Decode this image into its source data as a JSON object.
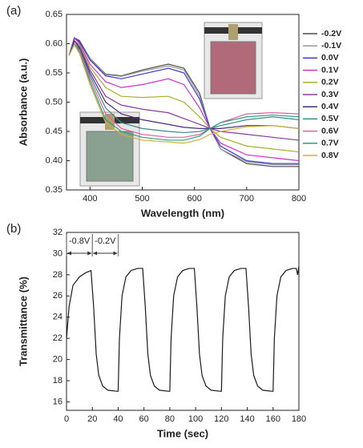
{
  "chart_data": [
    {
      "type": "line",
      "panel_label": "(a)",
      "x_label": "Wavelength (nm)",
      "y_label": "Absorbance (a.u.)",
      "x": [
        360,
        370,
        380,
        400,
        430,
        460,
        500,
        550,
        580,
        610,
        630,
        650,
        700,
        750,
        800
      ],
      "xlim": [
        355,
        800
      ],
      "xticks": [
        400,
        500,
        600,
        700,
        800
      ],
      "ylim": [
        0.35,
        0.65
      ],
      "yticks": [
        0.35,
        {
          "value": 0.4,
          "label": "0.40"
        },
        0.45,
        {
          "value": 0.5,
          "label": "0.50"
        },
        0.55,
        {
          "value": 0.6,
          "label": "0.60"
        },
        0.65
      ],
      "series": [
        {
          "name": "-0.2V",
          "color": "#4d4d4d",
          "values": [
            0.58,
            0.61,
            0.605,
            0.575,
            0.548,
            0.545,
            0.555,
            0.565,
            0.558,
            0.515,
            0.455,
            0.42,
            0.395,
            0.39,
            0.39
          ]
        },
        {
          "name": "-0.1V",
          "color": "#9a9a9a",
          "values": [
            0.58,
            0.608,
            0.603,
            0.574,
            0.547,
            0.544,
            0.553,
            0.562,
            0.555,
            0.51,
            0.455,
            0.42,
            0.398,
            0.393,
            0.393
          ]
        },
        {
          "name": "0.0V",
          "color": "#3a3ad0",
          "values": [
            0.58,
            0.61,
            0.603,
            0.572,
            0.545,
            0.54,
            0.548,
            0.558,
            0.55,
            0.505,
            0.455,
            0.425,
            0.4,
            0.395,
            0.395
          ]
        },
        {
          "name": "0.1V",
          "color": "#d030d0",
          "values": [
            0.58,
            0.61,
            0.6,
            0.565,
            0.535,
            0.525,
            0.53,
            0.54,
            0.53,
            0.49,
            0.455,
            0.43,
            0.41,
            0.405,
            0.4
          ]
        },
        {
          "name": "0.2V",
          "color": "#a8b030",
          "values": [
            0.58,
            0.605,
            0.598,
            0.56,
            0.525,
            0.51,
            0.508,
            0.51,
            0.5,
            0.475,
            0.455,
            0.44,
            0.425,
            0.42,
            0.415
          ]
        },
        {
          "name": "0.3V",
          "color": "#8a3aa0",
          "values": [
            0.58,
            0.605,
            0.595,
            0.555,
            0.51,
            0.495,
            0.488,
            0.482,
            0.472,
            0.462,
            0.455,
            0.45,
            0.445,
            0.44,
            0.435
          ]
        },
        {
          "name": "0.4V",
          "color": "#4a2a80",
          "values": [
            0.58,
            0.605,
            0.592,
            0.55,
            0.5,
            0.48,
            0.47,
            0.462,
            0.457,
            0.455,
            0.455,
            0.455,
            0.46,
            0.46,
            0.455
          ]
        },
        {
          "name": "0.5V",
          "color": "#3a8a8a",
          "values": [
            0.58,
            0.6,
            0.59,
            0.545,
            0.49,
            0.465,
            0.455,
            0.45,
            0.448,
            0.45,
            0.455,
            0.46,
            0.47,
            0.475,
            0.47
          ]
        },
        {
          "name": "0.6V",
          "color": "#e060a0",
          "values": [
            0.58,
            0.6,
            0.588,
            0.54,
            0.48,
            0.455,
            0.445,
            0.44,
            0.44,
            0.445,
            0.455,
            0.465,
            0.48,
            0.482,
            0.48
          ]
        },
        {
          "name": "0.7V",
          "color": "#2aa080",
          "values": [
            0.58,
            0.6,
            0.585,
            0.535,
            0.47,
            0.45,
            0.44,
            0.435,
            0.435,
            0.442,
            0.455,
            0.465,
            0.475,
            0.478,
            0.475
          ]
        },
        {
          "name": "0.8V",
          "color": "#d0b040",
          "values": [
            0.58,
            0.598,
            0.583,
            0.53,
            0.465,
            0.445,
            0.435,
            0.432,
            0.43,
            0.436,
            0.445,
            0.45,
            0.458,
            0.46,
            0.455
          ]
        }
      ]
    },
    {
      "type": "line",
      "panel_label": "(b)",
      "x_label": "Time (sec)",
      "y_label": "Transmittance (%)",
      "x": [
        0,
        2,
        5,
        10,
        15,
        19,
        21,
        23,
        25,
        28,
        32,
        39,
        40,
        41,
        43,
        46,
        50,
        55,
        59,
        61,
        63,
        65,
        68,
        72,
        79,
        80,
        81,
        83,
        86,
        90,
        95,
        99,
        101,
        103,
        105,
        108,
        112,
        119,
        120,
        121,
        123,
        126,
        130,
        135,
        139,
        141,
        143,
        145,
        148,
        152,
        159,
        160,
        161,
        163,
        166,
        170,
        175,
        178,
        179,
        180
      ],
      "xlim": [
        0,
        180
      ],
      "xticks": [
        0,
        20,
        40,
        60,
        80,
        100,
        120,
        140,
        160,
        180
      ],
      "ylim": [
        15.2,
        32
      ],
      "yticks": [
        16,
        18,
        20,
        22,
        24,
        26,
        28,
        30,
        32
      ],
      "series": [
        {
          "name": "Transmittance",
          "color": "#1a1a1a",
          "values": [
            22,
            25,
            27,
            27.8,
            28.2,
            28.4,
            25,
            20.5,
            18.5,
            17.5,
            17.1,
            17.0,
            17.0,
            22,
            26,
            27.8,
            28.4,
            28.6,
            28.6,
            25,
            20.5,
            18.5,
            17.5,
            17.1,
            17.0,
            17.0,
            22,
            26,
            27.8,
            28.4,
            28.6,
            28.6,
            25,
            20.5,
            18.5,
            17.5,
            17.1,
            17.0,
            17.0,
            22,
            26,
            27.8,
            28.4,
            28.6,
            28.6,
            25,
            20.5,
            18.5,
            17.5,
            17.1,
            17.0,
            17.0,
            22,
            26,
            27.8,
            28.4,
            28.6,
            28.6,
            28.0,
            28.8
          ]
        }
      ],
      "annotations": [
        {
          "text": "-0.8V",
          "span": [
            0,
            20
          ]
        },
        {
          "text": "-0.2V",
          "span": [
            20,
            40
          ]
        }
      ]
    }
  ]
}
